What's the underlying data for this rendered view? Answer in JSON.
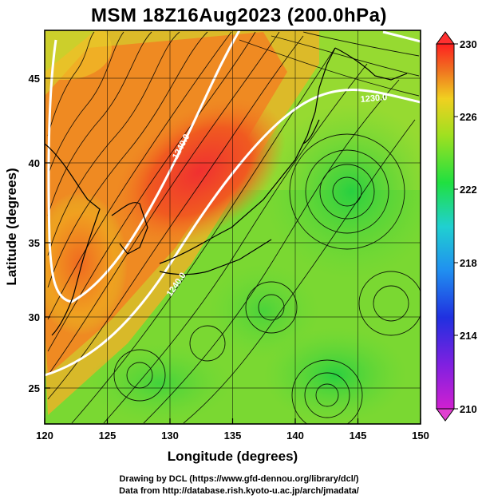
{
  "title": "MSM 18Z16Aug2023 (200.0hPa)",
  "map": {
    "xlabel": "Longitude (degrees)",
    "ylabel": "Latitude  (degrees)",
    "lon_range": [
      120,
      150
    ],
    "lat_range": [
      22.4,
      47.6
    ],
    "lon_ticks": [
      "120",
      "125",
      "130",
      "135",
      "140",
      "145",
      "150"
    ],
    "lat_ticks": [
      "25",
      "30",
      "35",
      "40",
      "45"
    ],
    "contour_labels": [
      "1240.0",
      "1240.0",
      "1230.0"
    ]
  },
  "colorbar": {
    "range": [
      210,
      230
    ],
    "ticks": [
      "230",
      "226",
      "222",
      "218",
      "214",
      "210"
    ]
  },
  "credits": {
    "line1": "Drawing by DCL (https://www.gfd-dennou.org/library/dcl/)",
    "line2": "Data from http://database.rish.kyoto-u.ac.jp/arch/jmadata/"
  },
  "colors": {
    "high": "#ff2020",
    "warm": "#f07020",
    "mid": "#c8e030",
    "low": "#20d040"
  }
}
